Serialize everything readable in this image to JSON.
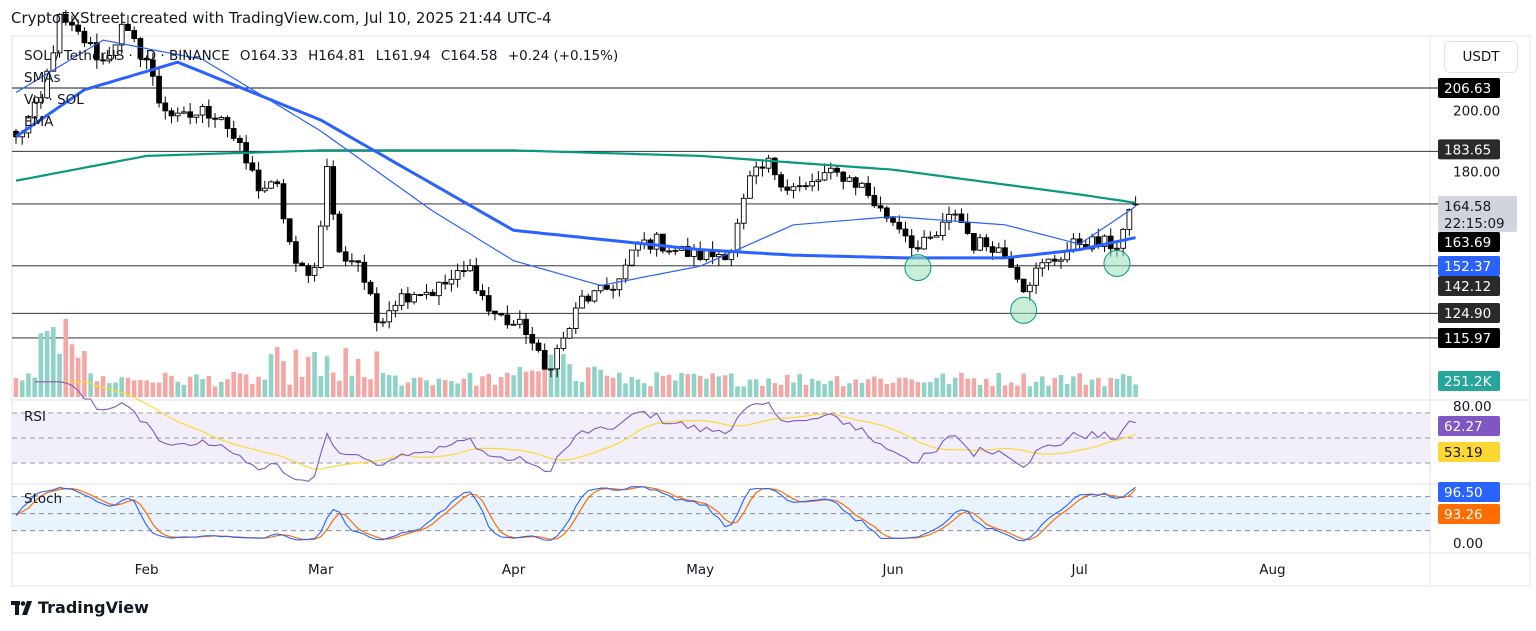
{
  "header": {
    "title": "CryptoFXStreet created with TradingView.com, Jul 10, 2025 21:44 UTC-4"
  },
  "legend": {
    "symbol": "SOL / TetherUS · 1D · BINANCE",
    "open": "O164.33",
    "high": "H164.81",
    "low": "L161.94",
    "close": "C164.58",
    "change": "+0.24 (+0.15%)",
    "indicators": [
      "SMAs",
      "Vol · SOL",
      "EMA"
    ],
    "rsi_label": "RSI",
    "stoch_label": "Stoch"
  },
  "axis": {
    "currency": "USDT",
    "price_ticks": [
      "200.00",
      "180.00"
    ],
    "rsi_tick": "80.00",
    "stoch_tick": "0.00",
    "time_labels": [
      {
        "label": "Feb",
        "date": "2025-02-01"
      },
      {
        "label": "Mar",
        "date": "2025-03-01"
      },
      {
        "label": "Apr",
        "date": "2025-04-01"
      },
      {
        "label": "May",
        "date": "2025-05-01"
      },
      {
        "label": "Jun",
        "date": "2025-06-01"
      },
      {
        "label": "Jul",
        "date": "2025-07-01"
      },
      {
        "label": "Aug",
        "date": "2025-08-01"
      }
    ]
  },
  "price_labels": [
    {
      "value": 206.63,
      "text": "206.63",
      "bg": "#000000",
      "fg": "#ffffff"
    },
    {
      "value": 183.65,
      "text": "183.65",
      "bg": "#2a2a2a",
      "fg": "#ffffff"
    },
    {
      "value": 164.58,
      "text": "164.58",
      "sub": "22:15:09",
      "bg": "#d1d4dc",
      "fg": "#131722"
    },
    {
      "value": 163.69,
      "text": "163.69",
      "bg": "#000000",
      "fg": "#ffffff"
    },
    {
      "value": 152.37,
      "text": "152.37",
      "bg": "#2962ff",
      "fg": "#ffffff"
    },
    {
      "value": 142.12,
      "text": "142.12",
      "bg": "#2a2a2a",
      "fg": "#ffffff"
    },
    {
      "value": 124.9,
      "text": "124.90",
      "bg": "#2a2a2a",
      "fg": "#ffffff"
    },
    {
      "value": 115.97,
      "text": "115.97",
      "bg": "#000000",
      "fg": "#ffffff"
    }
  ],
  "indicator_labels": {
    "volume": {
      "text": "251.2K",
      "bg": "#26a69a"
    },
    "rsi": {
      "text": "62.27",
      "bg": "#7e57c2"
    },
    "rsi_ma": {
      "text": "53.19",
      "bg": "#fdd835"
    },
    "stoch_k": {
      "text": "96.50",
      "bg": "#2962ff"
    },
    "stoch_d": {
      "text": "93.26",
      "bg": "#ff6d00"
    }
  },
  "colors": {
    "up": "#ffffff",
    "down": "#000000",
    "vol_up": "#8fd3c8",
    "vol_down": "#f4a8a6",
    "ma200": "#089981",
    "ma100": "#2962ff",
    "ma50": "#2962ff",
    "circle": "#9be0b7"
  },
  "chart_data": {
    "type": "candlestick",
    "title": "SOL / TetherUS · 1D · BINANCE",
    "ylabel": "USDT",
    "ylim": [
      100,
      230
    ],
    "horizontal_levels": [
      206.63,
      183.65,
      164.58,
      142.12,
      124.9,
      115.97
    ],
    "support_circles": [
      {
        "date": "2025-06-05",
        "price": 141.5
      },
      {
        "date": "2025-06-22",
        "price": 126
      },
      {
        "date": "2025-07-07",
        "price": 143
      }
    ],
    "close_samples": [
      [
        "2025-01-11",
        188
      ],
      [
        "2025-01-15",
        202
      ],
      [
        "2025-01-18",
        231
      ],
      [
        "2025-01-22",
        224
      ],
      [
        "2025-01-25",
        216
      ],
      [
        "2025-01-28",
        228
      ],
      [
        "2025-02-01",
        217
      ],
      [
        "2025-02-03",
        202
      ],
      [
        "2025-02-06",
        195
      ],
      [
        "2025-02-10",
        198
      ],
      [
        "2025-02-13",
        197
      ],
      [
        "2025-02-16",
        184
      ],
      [
        "2025-02-19",
        171
      ],
      [
        "2025-02-22",
        170
      ],
      [
        "2025-02-25",
        141
      ],
      [
        "2025-02-28",
        141
      ],
      [
        "2025-03-02",
        177
      ],
      [
        "2025-03-04",
        146
      ],
      [
        "2025-03-07",
        144
      ],
      [
        "2025-03-10",
        122
      ],
      [
        "2025-03-13",
        130
      ],
      [
        "2025-03-16",
        133
      ],
      [
        "2025-03-19",
        133
      ],
      [
        "2025-03-22",
        137
      ],
      [
        "2025-03-25",
        141
      ],
      [
        "2025-03-28",
        126
      ],
      [
        "2025-03-31",
        122
      ],
      [
        "2025-04-03",
        119
      ],
      [
        "2025-04-06",
        104
      ],
      [
        "2025-04-09",
        115
      ],
      [
        "2025-04-12",
        130
      ],
      [
        "2025-04-15",
        132
      ],
      [
        "2025-04-18",
        137
      ],
      [
        "2025-04-21",
        150
      ],
      [
        "2025-04-24",
        151
      ],
      [
        "2025-04-27",
        148
      ],
      [
        "2025-04-30",
        146
      ],
      [
        "2025-05-03",
        146
      ],
      [
        "2025-05-06",
        148
      ],
      [
        "2025-05-09",
        173
      ],
      [
        "2025-05-12",
        179
      ],
      [
        "2025-05-15",
        171
      ],
      [
        "2025-05-18",
        170
      ],
      [
        "2025-05-21",
        175
      ],
      [
        "2025-05-24",
        175
      ],
      [
        "2025-05-27",
        171
      ],
      [
        "2025-05-30",
        162
      ],
      [
        "2025-06-02",
        157
      ],
      [
        "2025-06-05",
        148
      ],
      [
        "2025-06-08",
        153
      ],
      [
        "2025-06-11",
        162
      ],
      [
        "2025-06-14",
        150
      ],
      [
        "2025-06-17",
        150
      ],
      [
        "2025-06-20",
        144
      ],
      [
        "2025-06-22",
        135
      ],
      [
        "2025-06-25",
        142
      ],
      [
        "2025-06-28",
        146
      ],
      [
        "2025-07-01",
        151
      ],
      [
        "2025-07-04",
        150
      ],
      [
        "2025-07-07",
        150
      ],
      [
        "2025-07-10",
        164.58
      ]
    ],
    "series": [
      {
        "name": "SMA 200",
        "color": "#089981",
        "points": [
          [
            "2025-01-11",
            173
          ],
          [
            "2025-02-01",
            182
          ],
          [
            "2025-03-01",
            184
          ],
          [
            "2025-04-01",
            184
          ],
          [
            "2025-05-01",
            182
          ],
          [
            "2025-06-01",
            177
          ],
          [
            "2025-07-01",
            168
          ],
          [
            "2025-07-10",
            165
          ]
        ]
      },
      {
        "name": "SMA 100",
        "color": "#2962ff",
        "points": [
          [
            "2025-01-11",
            189
          ],
          [
            "2025-01-22",
            206
          ],
          [
            "2025-02-06",
            216
          ],
          [
            "2025-03-01",
            195
          ],
          [
            "2025-04-01",
            155
          ],
          [
            "2025-05-01",
            148
          ],
          [
            "2025-05-16",
            146
          ],
          [
            "2025-06-03",
            145
          ],
          [
            "2025-06-19",
            145
          ],
          [
            "2025-07-01",
            148
          ],
          [
            "2025-07-10",
            152.37
          ]
        ]
      },
      {
        "name": "EMA 50",
        "color": "#2962ff",
        "points": [
          [
            "2025-01-11",
            205
          ],
          [
            "2025-01-25",
            224
          ],
          [
            "2025-02-10",
            217
          ],
          [
            "2025-03-01",
            191
          ],
          [
            "2025-03-19",
            162
          ],
          [
            "2025-04-01",
            144
          ],
          [
            "2025-04-15",
            135
          ],
          [
            "2025-05-01",
            142
          ],
          [
            "2025-05-16",
            157
          ],
          [
            "2025-06-01",
            160
          ],
          [
            "2025-06-19",
            157
          ],
          [
            "2025-07-01",
            150
          ],
          [
            "2025-07-10",
            163.69
          ]
        ]
      }
    ],
    "last": {
      "volume": "251.2K",
      "rsi": 62.27,
      "rsi_ma": 53.19,
      "stoch_k": 96.5,
      "stoch_d": 93.26
    }
  }
}
